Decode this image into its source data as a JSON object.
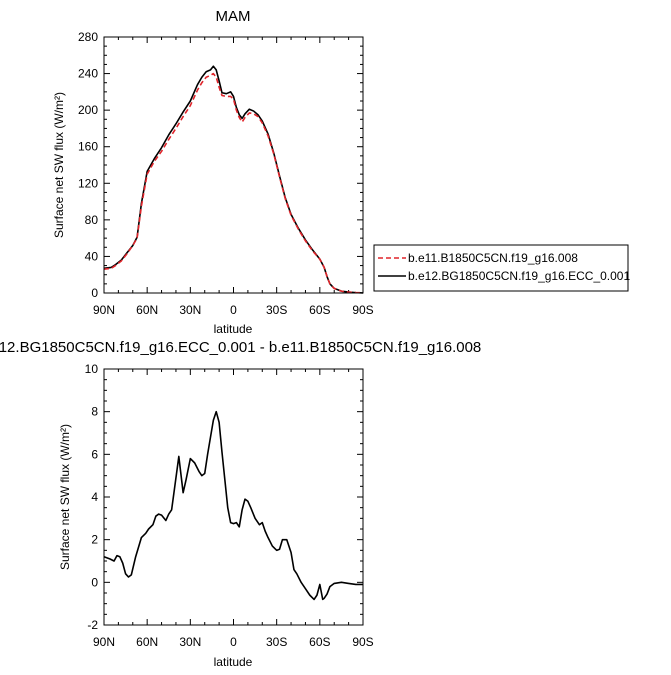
{
  "chart_data": [
    {
      "type": "line",
      "title": "MAM",
      "xlabel": "latitude",
      "ylabel": "Surface net SW flux (W/m²)",
      "ylim": [
        0,
        280
      ],
      "yticks": [
        0,
        40,
        80,
        120,
        160,
        200,
        240,
        280
      ],
      "xlim": [
        90,
        -90
      ],
      "xticks": [
        90,
        60,
        30,
        0,
        -30,
        -60,
        -90
      ],
      "xtick_labels": [
        "90N",
        "60N",
        "30N",
        "0",
        "30S",
        "60S",
        "90S"
      ],
      "legend_position": "right",
      "x": [
        90,
        85,
        82,
        78,
        74,
        70,
        67,
        64,
        60,
        55,
        50,
        45,
        40,
        35,
        30,
        25,
        22,
        19,
        16,
        14,
        12,
        10,
        8,
        5,
        2,
        0,
        -2,
        -4,
        -6,
        -8,
        -11,
        -14,
        -17,
        -20,
        -24,
        -28,
        -32,
        -36,
        -40,
        -45,
        -50,
        -55,
        -60,
        -63,
        -65,
        -67,
        -70,
        -75,
        -80,
        -85,
        -90
      ],
      "series": [
        {
          "name": "b.e11.B1850C5CN.f19_g16.008",
          "color": "#e0242a",
          "dash": "dashed",
          "values": [
            26,
            27,
            30,
            35,
            43,
            52,
            60,
            95,
            130,
            144,
            155,
            168,
            180,
            193,
            205,
            222,
            230,
            236,
            238,
            240,
            236,
            225,
            216,
            215,
            215,
            212,
            200,
            192,
            187,
            192,
            197,
            196,
            193,
            186,
            172,
            152,
            127,
            103,
            85,
            70,
            57,
            46,
            37,
            28,
            18,
            10,
            5,
            2,
            1,
            0.5,
            0.2
          ]
        },
        {
          "name": "b.e12.BG1850C5CN.f19_g16.ECC_0.001",
          "color": "#000000",
          "dash": "solid",
          "values": [
            27,
            28,
            31,
            36,
            44,
            52,
            61,
            98,
            133,
            147,
            159,
            173,
            185,
            198,
            210,
            228,
            236,
            242,
            244,
            248,
            244,
            232,
            219,
            218,
            220,
            215,
            203,
            195,
            191,
            196,
            201,
            199,
            195,
            188,
            174,
            153,
            128,
            104,
            86,
            71,
            58,
            47,
            37,
            28,
            18,
            10,
            5,
            2,
            1,
            0.4,
            0.1
          ]
        }
      ]
    },
    {
      "type": "line",
      "title": "12.BG1850C5CN.f19_g16.ECC_0.001 - b.e11.B1850C5CN.f19_g16.008",
      "xlabel": "latitude",
      "ylabel": "Surface net SW flux (W/m²)",
      "ylim": [
        -2,
        10
      ],
      "yticks": [
        -2,
        0,
        2,
        4,
        6,
        8,
        10
      ],
      "xlim": [
        90,
        -90
      ],
      "xticks": [
        90,
        60,
        30,
        0,
        -30,
        -60,
        -90
      ],
      "xtick_labels": [
        "90N",
        "60N",
        "30N",
        "0",
        "30S",
        "60S",
        "90S"
      ],
      "x": [
        90,
        86,
        83,
        81,
        79,
        77,
        75,
        73,
        71,
        68,
        64,
        61,
        59,
        56,
        54,
        52,
        50,
        47,
        45,
        43,
        41,
        38,
        35,
        33,
        30,
        27,
        24,
        22,
        20,
        18,
        16,
        14,
        12,
        10,
        8,
        6,
        4,
        2,
        0,
        -2,
        -4,
        -6,
        -8,
        -10,
        -12,
        -15,
        -18,
        -20,
        -22,
        -24,
        -27,
        -30,
        -32,
        -34,
        -37,
        -40,
        -42,
        -44,
        -47,
        -50,
        -53,
        -56,
        -58,
        -60,
        -62,
        -63,
        -65,
        -67,
        -70,
        -75,
        -80,
        -85,
        -90
      ],
      "series": [
        {
          "name": "",
          "color": "#000000",
          "values": [
            1.2,
            1.1,
            1.0,
            1.25,
            1.2,
            0.9,
            0.4,
            0.25,
            0.35,
            1.2,
            2.1,
            2.3,
            2.5,
            2.7,
            3.1,
            3.2,
            3.15,
            2.9,
            3.2,
            3.4,
            4.4,
            5.9,
            4.2,
            4.8,
            5.8,
            5.6,
            5.2,
            5.0,
            5.1,
            6.0,
            6.8,
            7.6,
            8.0,
            7.5,
            6.1,
            4.8,
            3.5,
            2.8,
            2.75,
            2.8,
            2.6,
            3.4,
            3.9,
            3.8,
            3.5,
            3.0,
            2.7,
            2.8,
            2.4,
            2.1,
            1.7,
            1.5,
            1.55,
            2.0,
            2.0,
            1.4,
            0.6,
            0.4,
            0.0,
            -0.3,
            -0.6,
            -0.8,
            -0.6,
            -0.1,
            -0.8,
            -0.75,
            -0.55,
            -0.2,
            -0.05,
            0.0,
            -0.05,
            -0.1,
            -0.1
          ]
        }
      ]
    }
  ]
}
